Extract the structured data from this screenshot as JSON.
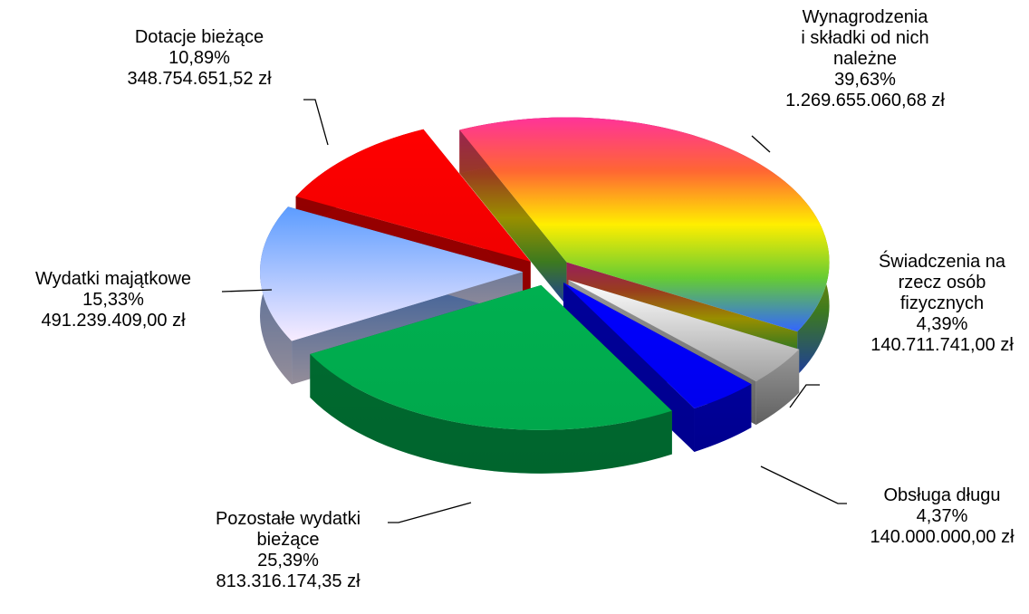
{
  "chart_data": {
    "type": "pie3d",
    "categories": [
      "Wynagrodzenia\ni składki od nich\nnależne",
      "Świadczenia na\nrzecz osób\nfizycznych",
      "Obsługa długu",
      "Pozostałe wydatki\nbieżące",
      "Wydatki majątkowe",
      "Dotacje bieżące"
    ],
    "values": [
      39.63,
      4.39,
      4.37,
      25.39,
      15.33,
      10.89
    ],
    "value_labels": [
      "39,63%",
      "4,39%",
      "4,37%",
      "25,39%",
      "15,33%",
      "10,89%"
    ],
    "amounts": [
      1269655060.68,
      140711741.0,
      140000000.0,
      813316174.35,
      491239409.0,
      348754651.52
    ],
    "amount_labels": [
      "1.269.655.060,68 zł",
      "140.711.741,00 zł",
      "140.000.000,00 zł",
      "813.316.174,35 zł",
      "491.239.409,00 zł",
      "348.754.651,52 zł"
    ],
    "colors": [
      [
        "#ff3399",
        "#ff6633",
        "#ffee00",
        "#66cc33",
        "#3366ff"
      ],
      [
        "#ffffff",
        "#a0a0a0"
      ],
      [
        "#0000ff",
        "#0000ee"
      ],
      [
        "#00b050",
        "#00a84c"
      ],
      [
        "#5c9cff",
        "#f8ecff"
      ],
      [
        "#ff0000",
        "#f00000"
      ]
    ]
  }
}
